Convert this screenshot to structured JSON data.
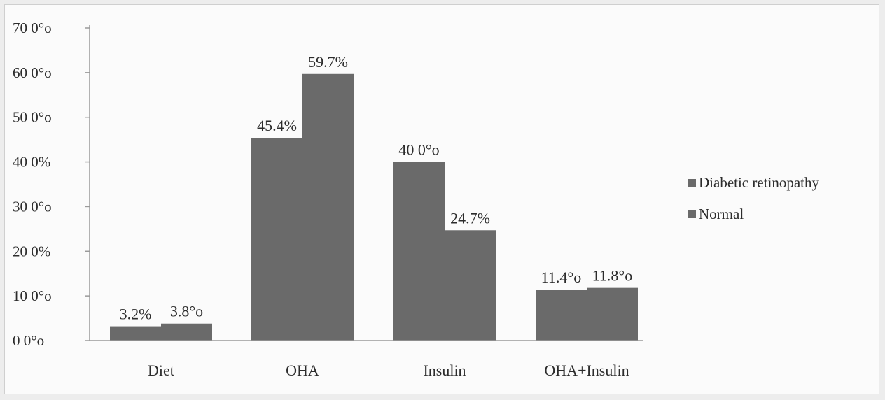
{
  "chart_data": {
    "type": "bar",
    "categories": [
      "Diet",
      "OHA",
      "Insulin",
      "OHA+Insulin"
    ],
    "series": [
      {
        "name": "Diabetic retinopathy",
        "values": [
          3.2,
          45.4,
          40.0,
          11.4
        ],
        "labels": [
          "3.2%",
          "45.4%",
          "40 0°o",
          "11.4°o"
        ],
        "color": "#6a6a6a"
      },
      {
        "name": "Normal",
        "values": [
          3.8,
          59.7,
          24.7,
          11.8
        ],
        "labels": [
          "3.8°o",
          "59.7%",
          "24.7%",
          "11.8°o"
        ],
        "color": "#6a6a6a"
      }
    ],
    "y_ticks": [
      "0 0°o",
      "10 0°o",
      "20 0%",
      "30 0°o",
      "40 0%",
      "50 0°o",
      "60 0°o",
      "70 0°o"
    ],
    "ylim": [
      0,
      70
    ],
    "grid": false,
    "legend_position": "right"
  }
}
